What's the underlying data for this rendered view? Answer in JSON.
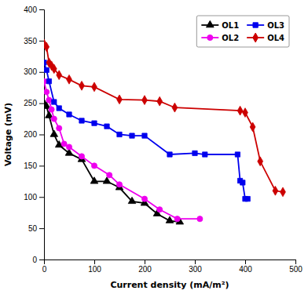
{
  "chart_data": {
    "type": "line",
    "xlabel": "Current density (mA/m²)",
    "ylabel": "Voltage (mV)",
    "xlim": [
      0,
      500
    ],
    "ylim": [
      0,
      400
    ],
    "xticks": [
      0,
      100,
      200,
      300,
      400,
      500
    ],
    "yticks": [
      0,
      50,
      100,
      150,
      200,
      250,
      300,
      350,
      400
    ],
    "grid": false,
    "legend": "upper right",
    "series": [
      {
        "name": "OL1",
        "color": "#000000",
        "marker": "triangle",
        "x": [
          0,
          5,
          10,
          20,
          30,
          50,
          75,
          100,
          125,
          150,
          175,
          200,
          225,
          250,
          270
        ],
        "values": [
          250,
          245,
          230,
          200,
          183,
          170,
          160,
          125,
          125,
          115,
          93,
          90,
          73,
          62,
          60
        ]
      },
      {
        "name": "OL2",
        "color": "#ee00ee",
        "marker": "circle",
        "x": [
          0,
          5,
          10,
          15,
          20,
          30,
          40,
          50,
          75,
          100,
          130,
          150,
          200,
          230,
          265,
          310
        ],
        "values": [
          285,
          268,
          255,
          240,
          225,
          210,
          185,
          180,
          165,
          150,
          135,
          120,
          97,
          80,
          65,
          65
        ]
      },
      {
        "name": "OL3",
        "color": "#0000ee",
        "marker": "square",
        "x": [
          0,
          5,
          10,
          20,
          30,
          50,
          75,
          100,
          125,
          150,
          175,
          200,
          250,
          300,
          320,
          385,
          390,
          395,
          400,
          405
        ],
        "values": [
          315,
          303,
          285,
          252,
          242,
          232,
          222,
          218,
          213,
          200,
          198,
          198,
          168,
          170,
          168,
          168,
          126,
          123,
          97,
          97
        ]
      },
      {
        "name": "OL4",
        "color": "#cc0000",
        "marker": "diamond",
        "x": [
          0,
          5,
          10,
          15,
          20,
          30,
          50,
          75,
          100,
          150,
          200,
          230,
          260,
          390,
          400,
          415,
          430,
          460,
          475
        ],
        "values": [
          345,
          340,
          315,
          310,
          305,
          295,
          288,
          278,
          276,
          256,
          255,
          253,
          243,
          238,
          235,
          212,
          157,
          110,
          108
        ]
      }
    ]
  }
}
